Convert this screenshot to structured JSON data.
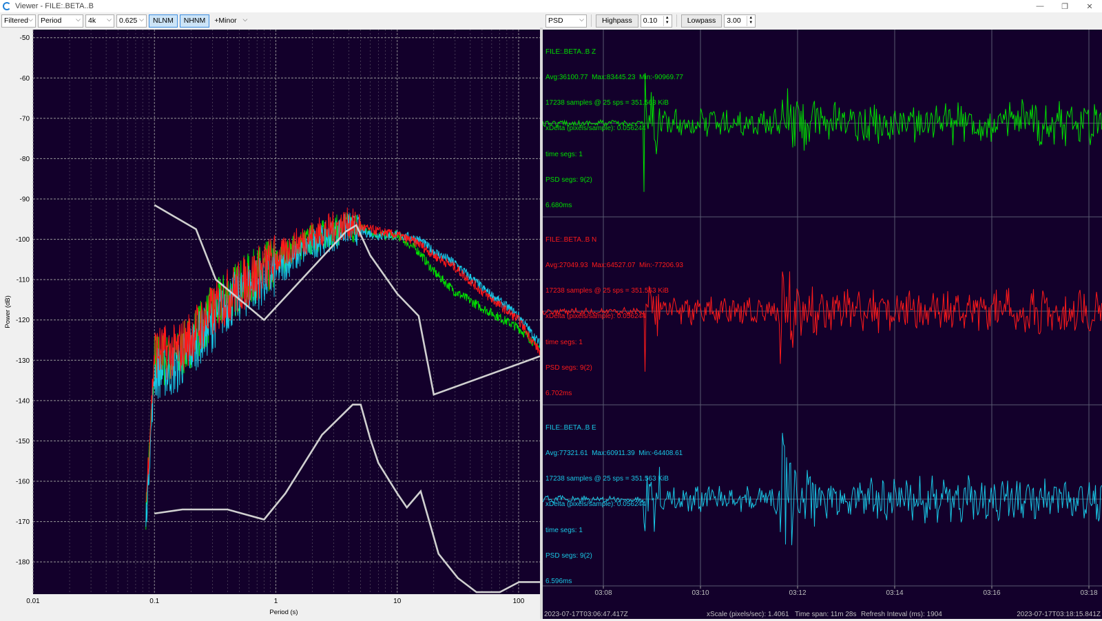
{
  "window": {
    "title": "Viewer - FILE:.BETA..B",
    "controls": [
      "—",
      "❐",
      "✕"
    ]
  },
  "left_toolbar": {
    "mode": "Filtered",
    "axis": "Period",
    "fft_size": "4k",
    "smoothing": "0.625",
    "nlnm_label": "NLNM",
    "nhnm_label": "NHNM",
    "minor_label": "+Minor"
  },
  "right_toolbar": {
    "view": "PSD",
    "highpass_label": "Highpass",
    "highpass_value": "0.10",
    "lowpass_label": "Lowpass",
    "lowpass_value": "3.00"
  },
  "psd_chart": {
    "y_label": "Power (dB)",
    "x_label": "Period (s)",
    "y_ticks": [
      "-50",
      "-60",
      "-70",
      "-80",
      "-90",
      "-100",
      "-110",
      "-120",
      "-130",
      "-140",
      "-150",
      "-160",
      "-170",
      "-180"
    ],
    "x_ticks": [
      "0.01",
      "0.1",
      "1",
      "10",
      "100"
    ],
    "colors": {
      "background": "#13002b",
      "grid": "#9a9a9a",
      "model": "#d0d0d0",
      "z": "#00e000",
      "n": "#ff1a1a",
      "e": "#19c8e6"
    }
  },
  "chart_data": {
    "type": "line",
    "x_scale": "log",
    "xlim": [
      0.01,
      150
    ],
    "ylim": [
      -188,
      -48
    ],
    "series": [
      {
        "name": "NHNM",
        "x": [
          0.1,
          0.22,
          0.32,
          0.8,
          3.8,
          4.6,
          6.0,
          10,
          15,
          20,
          150
        ],
        "y": [
          -91.5,
          -97.5,
          -110,
          -120,
          -98,
          -96.5,
          -104,
          -113.5,
          -119,
          -138.5,
          -129
        ]
      },
      {
        "name": "NLNM",
        "x": [
          0.1,
          0.17,
          0.4,
          0.8,
          1.2,
          2.4,
          4.3,
          5.0,
          6.0,
          7.0,
          10,
          12,
          15.6,
          21.9,
          31.6,
          45,
          70,
          101,
          150
        ],
        "y": [
          -168,
          -167,
          -167,
          -169.5,
          -163,
          -148.5,
          -141,
          -141,
          -149.5,
          -155.5,
          -163,
          -166.5,
          -162.5,
          -178,
          -184,
          -187.5,
          -187.5,
          -185,
          -185
        ]
      },
      {
        "name": "BETA..B Z",
        "x": [
          0.085,
          0.1,
          0.15,
          0.2,
          0.3,
          0.4,
          0.6,
          1.0,
          1.5,
          2.0,
          3.0,
          4.0,
          5.0,
          7.0,
          10,
          15,
          20,
          30,
          50,
          100,
          150
        ],
        "y": [
          -168,
          -130,
          -130,
          -125,
          -118,
          -114,
          -110,
          -106,
          -102,
          -100,
          -98,
          -97,
          -97,
          -99,
          -99,
          -103,
          -108,
          -113,
          -117,
          -122,
          -127
        ]
      },
      {
        "name": "BETA..B N",
        "x": [
          0.085,
          0.1,
          0.15,
          0.2,
          0.3,
          0.4,
          0.6,
          1.0,
          1.5,
          2.0,
          3.0,
          4.0,
          5.0,
          7.0,
          10,
          15,
          20,
          30,
          50,
          100,
          150
        ],
        "y": [
          -166,
          -128,
          -128,
          -124,
          -118,
          -114,
          -110,
          -105,
          -101,
          -99,
          -97,
          -96,
          -97,
          -98,
          -99,
          -101,
          -104,
          -107,
          -113,
          -120,
          -128
        ]
      },
      {
        "name": "BETA..B E",
        "x": [
          0.085,
          0.1,
          0.15,
          0.2,
          0.3,
          0.4,
          0.6,
          1.0,
          1.5,
          2.0,
          3.0,
          4.0,
          5.0,
          7.0,
          10,
          15,
          20,
          30,
          50,
          100,
          150
        ],
        "y": [
          -170,
          -133,
          -132,
          -127,
          -121,
          -116,
          -112,
          -108,
          -104,
          -101,
          -99,
          -97,
          -98,
          -99,
          -99,
          -100,
          -103,
          -106,
          -112,
          -119,
          -126
        ]
      }
    ]
  },
  "traces": [
    {
      "channel": "FILE:.BETA..B Z",
      "color": "#00e000",
      "lines": [
        "Avg:36100.77  Max:83445.23  Min:-90969.77",
        "17238 samples @ 25 sps = 351.563 KiB",
        "xDelta (pixels/sample): 0.056244",
        "time segs: 1",
        "PSD segs: 9(2)",
        "6.680ms"
      ]
    },
    {
      "channel": "FILE:.BETA..B N",
      "color": "#ff1a1a",
      "lines": [
        "Avg:27049.93  Max:64527.07  Min:-77206.93",
        "17238 samples @ 25 sps = 351.563 KiB",
        "xDelta (pixels/sample): 0.056244",
        "time segs: 1",
        "PSD segs: 9(2)",
        "6.702ms"
      ]
    },
    {
      "channel": "FILE:.BETA..B E",
      "color": "#19c8e6",
      "lines": [
        "Avg:77321.61  Max:60911.39  Min:-64408.61",
        "17238 samples @ 25 sps = 351.563 KiB",
        "xDelta (pixels/sample): 0.056244",
        "time segs: 1",
        "PSD segs: 9(2)",
        "6.596ms"
      ]
    }
  ],
  "time_axis": {
    "ticks": [
      "03:08",
      "03:10",
      "03:12",
      "03:14",
      "03:16",
      "03:18"
    ]
  },
  "status": {
    "start": "2023-07-17T03:06:47.417Z",
    "xscale": "xScale (pixels/sec): 1.4061",
    "timespan": "Time span: 11m 28s",
    "refresh": "Refresh Inteval (ms): 1904",
    "end": "2023-07-17T03:18:15.841Z"
  }
}
